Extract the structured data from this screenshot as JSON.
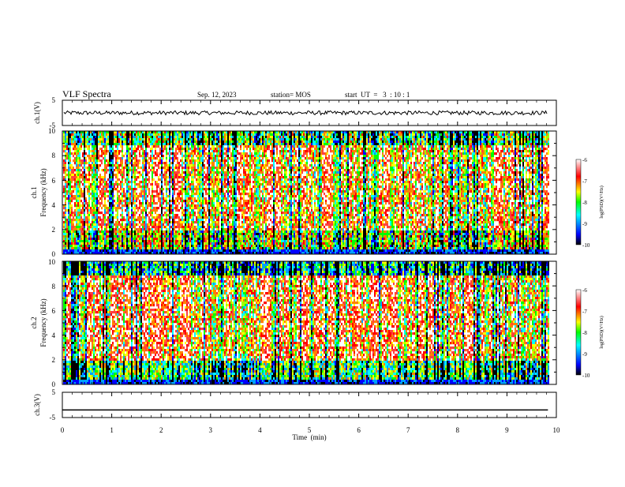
{
  "header": {
    "title": "VLF Spectra",
    "date": "Sep. 12, 2023",
    "station": "station= MOS",
    "start_ut": "start  UT  =   3  : 10 : 1"
  },
  "chart_data": [
    {
      "type": "line",
      "name": "ch1-waveform",
      "ylabel": "ch.1(V)",
      "ylim": [
        -5,
        5
      ],
      "y_ticks": [
        "5",
        "-5"
      ],
      "xlim": [
        0,
        10
      ],
      "series": [
        {
          "values_description": "noisy waveform near 0 V",
          "level": 0
        }
      ]
    },
    {
      "type": "heatmap",
      "name": "ch1-spectrogram",
      "ylabel": "ch.1\nFrequency (kHz)",
      "ylabel_lines": [
        "ch.1",
        "Frequency (kHz)"
      ],
      "ylim": [
        0,
        10
      ],
      "y_ticks": [
        "0",
        "2",
        "4",
        "6",
        "8",
        "10"
      ],
      "xlim": [
        0,
        9.83
      ],
      "colorbar": {
        "label": "log(PSD)(V²/Hz)",
        "range": [
          -10,
          -6
        ],
        "ticks": [
          "-6",
          "-7",
          "-8",
          "-9",
          "-10"
        ]
      }
    },
    {
      "type": "heatmap",
      "name": "ch2-spectrogram",
      "ylabel": "ch.2\nFrequency (kHz)",
      "ylabel_lines": [
        "ch.2",
        "Frequency (kHz)"
      ],
      "ylim": [
        0,
        10
      ],
      "y_ticks": [
        "0",
        "2",
        "4",
        "6",
        "8",
        "10"
      ],
      "xlim": [
        0,
        9.83
      ],
      "colorbar": {
        "label": "log(PSD)(V²/Hz)",
        "range": [
          -10,
          -6
        ],
        "ticks": [
          "-6",
          "-7",
          "-8",
          "-9",
          "-10"
        ]
      }
    },
    {
      "type": "line",
      "name": "ch3-waveform",
      "ylabel": "ch.3(V)",
      "ylim": [
        -5,
        5
      ],
      "y_ticks": [
        "5",
        "-5"
      ],
      "xlim": [
        0,
        10
      ],
      "series": [
        {
          "values_description": "flat line",
          "level": -2
        }
      ]
    }
  ],
  "x_axis": {
    "label": "Time  (min)",
    "ticks": [
      "0",
      "1",
      "2",
      "3",
      "4",
      "5",
      "6",
      "7",
      "8",
      "9",
      "10"
    ],
    "range": [
      0,
      10
    ]
  },
  "colors": {
    "colormap": [
      "#000000",
      "#0000ff",
      "#00ffff",
      "#00ff00",
      "#ffff00",
      "#ff0000",
      "#ffffff"
    ]
  }
}
